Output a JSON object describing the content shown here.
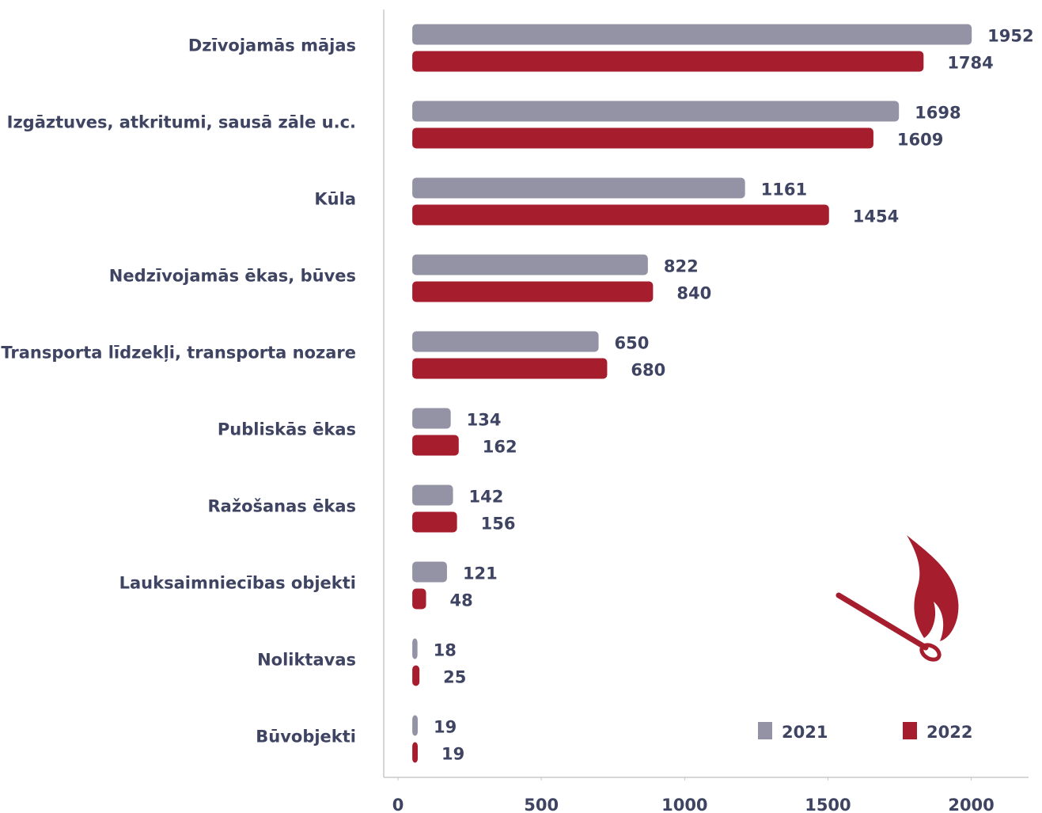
{
  "chart_data": {
    "type": "hbar",
    "categories": [
      "Dzīvojamās mājas",
      "Izgāztuves, atkritumi, sausā zāle u.c.",
      "Kūla",
      "Nedzīvojamās ēkas, būves",
      "Transporta līdzekļi, transporta nozare",
      "Publiskās ēkas",
      "Ražošanas ēkas",
      "Lauksaimniecības objekti",
      "Noliktavas",
      "Būvobjekti"
    ],
    "series": [
      {
        "name": "2021",
        "color": "#9393a5",
        "values": [
          1952,
          1698,
          1161,
          822,
          650,
          134,
          142,
          121,
          18,
          19
        ]
      },
      {
        "name": "2022",
        "color": "#a61e2e",
        "values": [
          1784,
          1609,
          1454,
          840,
          680,
          162,
          156,
          48,
          25,
          19
        ]
      }
    ],
    "xlim": [
      -50,
      2200
    ],
    "xticks": [
      0,
      500,
      1000,
      1500,
      2000
    ],
    "legend": "lower right"
  }
}
